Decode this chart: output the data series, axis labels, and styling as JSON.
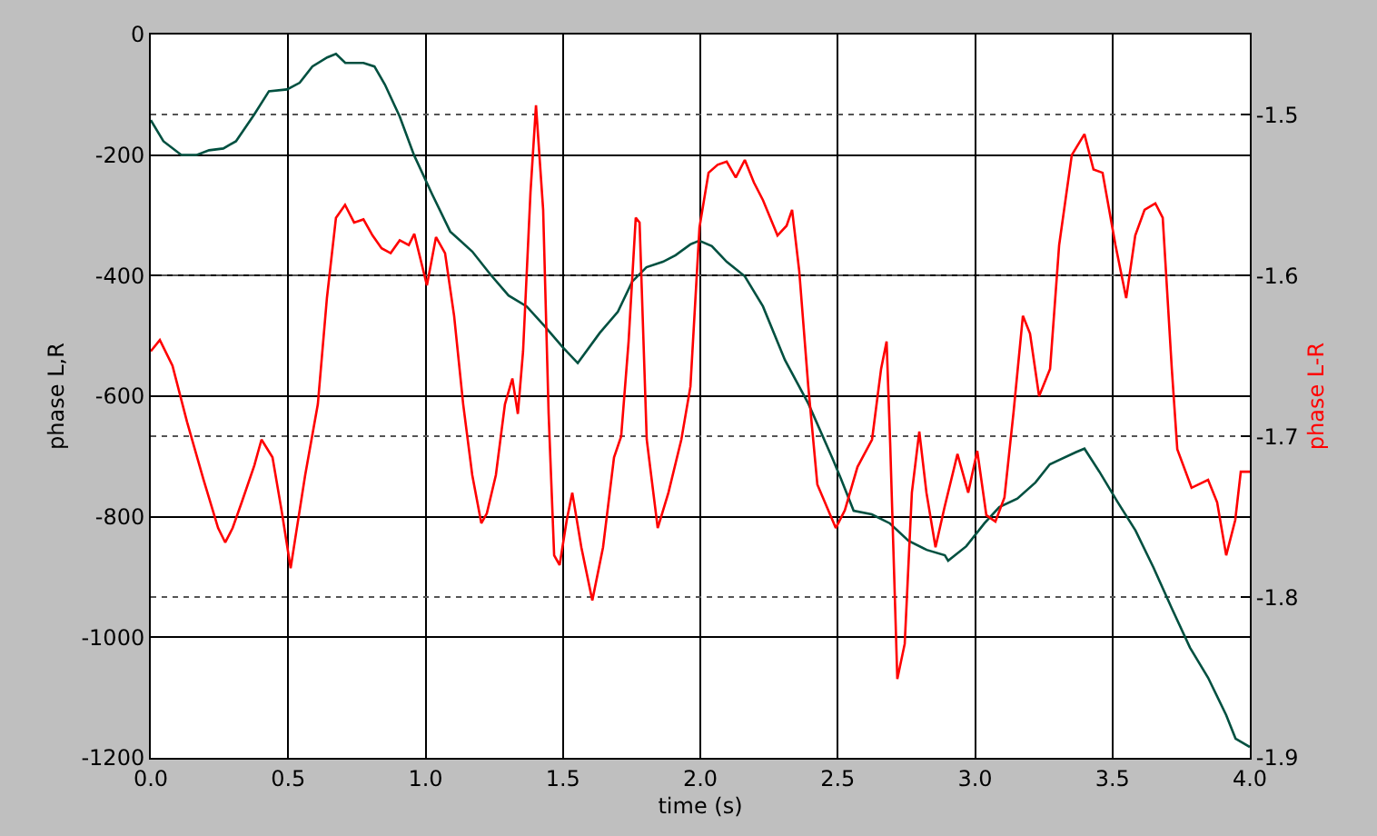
{
  "chart_data": {
    "type": "line",
    "xlabel": "time (s)",
    "ylabel": "phase L,R",
    "y2label": "phase L-R",
    "xlim": [
      0.0,
      4.0
    ],
    "xticks": [
      {
        "value": 0,
        "label": "0.0"
      },
      {
        "value": 0.5,
        "label": "0.5"
      },
      {
        "value": 1,
        "label": "1.0"
      },
      {
        "value": 1.5,
        "label": "1.5"
      },
      {
        "value": 2,
        "label": "2.0"
      },
      {
        "value": 2.5,
        "label": "2.5"
      },
      {
        "value": 3,
        "label": "3.0"
      },
      {
        "value": 3.5,
        "label": "3.5"
      },
      {
        "value": 4,
        "label": "4.0"
      }
    ],
    "ylim": [
      -1200,
      0
    ],
    "yticks": [
      -1200,
      -1000,
      -800,
      -600,
      -400,
      -200,
      0
    ],
    "y2lim": [
      -1.9,
      -1.45
    ],
    "y2ticks": [
      -1.9,
      -1.8,
      -1.7,
      -1.6,
      -1.5
    ],
    "grid": true,
    "line_style": "solid",
    "marker": "none",
    "series": [
      {
        "color": "#005040",
        "x": [
          0,
          0.046,
          0.112,
          0.166,
          0.212,
          0.264,
          0.31,
          0.376,
          0.43,
          0.496,
          0.542,
          0.588,
          0.642,
          0.674,
          0.708,
          0.774,
          0.814,
          0.852,
          0.906,
          0.958,
          1.024,
          1.09,
          1.17,
          1.236,
          1.302,
          1.368,
          1.434,
          1.5,
          1.554,
          1.634,
          1.7,
          1.752,
          1.804,
          1.864,
          1.91,
          1.964,
          1.996,
          2.042,
          2.096,
          2.162,
          2.228,
          2.308,
          2.394,
          2.48,
          2.512,
          2.558,
          2.624,
          2.69,
          2.758,
          2.824,
          2.89,
          2.902,
          2.968,
          3.034,
          3.088,
          3.154,
          3.22,
          3.272,
          3.366,
          3.398,
          3.452,
          3.518,
          3.584,
          3.65,
          3.716,
          3.782,
          3.848,
          3.914,
          3.948,
          4.0
        ],
        "values": [
          -142,
          -177,
          -200,
          -200,
          -192,
          -189,
          -177,
          -133,
          -94,
          -91,
          -80,
          -53,
          -38,
          -32,
          -47,
          -47,
          -53,
          -83,
          -136,
          -200,
          -265,
          -327,
          -360,
          -398,
          -433,
          -451,
          -484,
          -519,
          -545,
          -495,
          -460,
          -410,
          -386,
          -377,
          -366,
          -348,
          -342,
          -351,
          -377,
          -401,
          -451,
          -540,
          -613,
          -702,
          -737,
          -790,
          -796,
          -811,
          -840,
          -855,
          -864,
          -873,
          -849,
          -811,
          -784,
          -770,
          -743,
          -713,
          -693,
          -687,
          -725,
          -775,
          -823,
          -885,
          -952,
          -1017,
          -1067,
          -1129,
          -1168,
          -1182
        ]
      },
      {
        "color": "#ff0000",
        "axis": "y2",
        "x": [
          0,
          0.033,
          0.079,
          0.132,
          0.192,
          0.245,
          0.271,
          0.298,
          0.331,
          0.377,
          0.403,
          0.443,
          0.476,
          0.509,
          0.529,
          0.562,
          0.608,
          0.641,
          0.674,
          0.707,
          0.74,
          0.774,
          0.807,
          0.84,
          0.873,
          0.906,
          0.939,
          0.959,
          1.005,
          1.038,
          1.071,
          1.104,
          1.137,
          1.17,
          1.203,
          1.223,
          1.256,
          1.289,
          1.316,
          1.336,
          1.355,
          1.382,
          1.402,
          1.428,
          1.448,
          1.468,
          1.488,
          1.514,
          1.534,
          1.567,
          1.607,
          1.646,
          1.686,
          1.712,
          1.739,
          1.765,
          1.779,
          1.805,
          1.845,
          1.884,
          1.931,
          1.964,
          1.997,
          2.03,
          2.063,
          2.096,
          2.129,
          2.162,
          2.195,
          2.228,
          2.281,
          2.314,
          2.334,
          2.36,
          2.393,
          2.426,
          2.493,
          2.526,
          2.572,
          2.625,
          2.658,
          2.678,
          2.691,
          2.717,
          2.744,
          2.77,
          2.797,
          2.823,
          2.856,
          2.889,
          2.936,
          2.975,
          3.008,
          3.041,
          3.074,
          3.107,
          3.14,
          3.174,
          3.2,
          3.233,
          3.273,
          3.306,
          3.352,
          3.398,
          3.431,
          3.464,
          3.511,
          3.55,
          3.583,
          3.617,
          3.656,
          3.683,
          3.716,
          3.736,
          3.788,
          3.848,
          3.881,
          3.914,
          3.947,
          3.967,
          4.0
        ],
        "values": [
          -1.647,
          -1.64,
          -1.656,
          -1.691,
          -1.727,
          -1.757,
          -1.766,
          -1.757,
          -1.741,
          -1.718,
          -1.702,
          -1.713,
          -1.746,
          -1.782,
          -1.76,
          -1.724,
          -1.68,
          -1.614,
          -1.564,
          -1.556,
          -1.567,
          -1.565,
          -1.575,
          -1.583,
          -1.586,
          -1.578,
          -1.581,
          -1.574,
          -1.606,
          -1.576,
          -1.586,
          -1.625,
          -1.68,
          -1.724,
          -1.754,
          -1.748,
          -1.724,
          -1.68,
          -1.664,
          -1.686,
          -1.647,
          -1.548,
          -1.494,
          -1.559,
          -1.686,
          -1.774,
          -1.78,
          -1.752,
          -1.735,
          -1.769,
          -1.802,
          -1.769,
          -1.713,
          -1.7,
          -1.641,
          -1.564,
          -1.567,
          -1.702,
          -1.757,
          -1.735,
          -1.702,
          -1.669,
          -1.57,
          -1.536,
          -1.531,
          -1.529,
          -1.539,
          -1.528,
          -1.542,
          -1.553,
          -1.575,
          -1.569,
          -1.559,
          -1.597,
          -1.669,
          -1.73,
          -1.757,
          -1.746,
          -1.719,
          -1.702,
          -1.658,
          -1.641,
          -1.704,
          -1.851,
          -1.829,
          -1.735,
          -1.697,
          -1.735,
          -1.769,
          -1.744,
          -1.711,
          -1.735,
          -1.709,
          -1.749,
          -1.753,
          -1.738,
          -1.685,
          -1.625,
          -1.636,
          -1.675,
          -1.658,
          -1.581,
          -1.525,
          -1.512,
          -1.534,
          -1.536,
          -1.581,
          -1.614,
          -1.575,
          -1.559,
          -1.555,
          -1.564,
          -1.658,
          -1.708,
          -1.732,
          -1.727,
          -1.741,
          -1.774,
          -1.752,
          -1.722,
          -1.722
        ]
      }
    ]
  }
}
